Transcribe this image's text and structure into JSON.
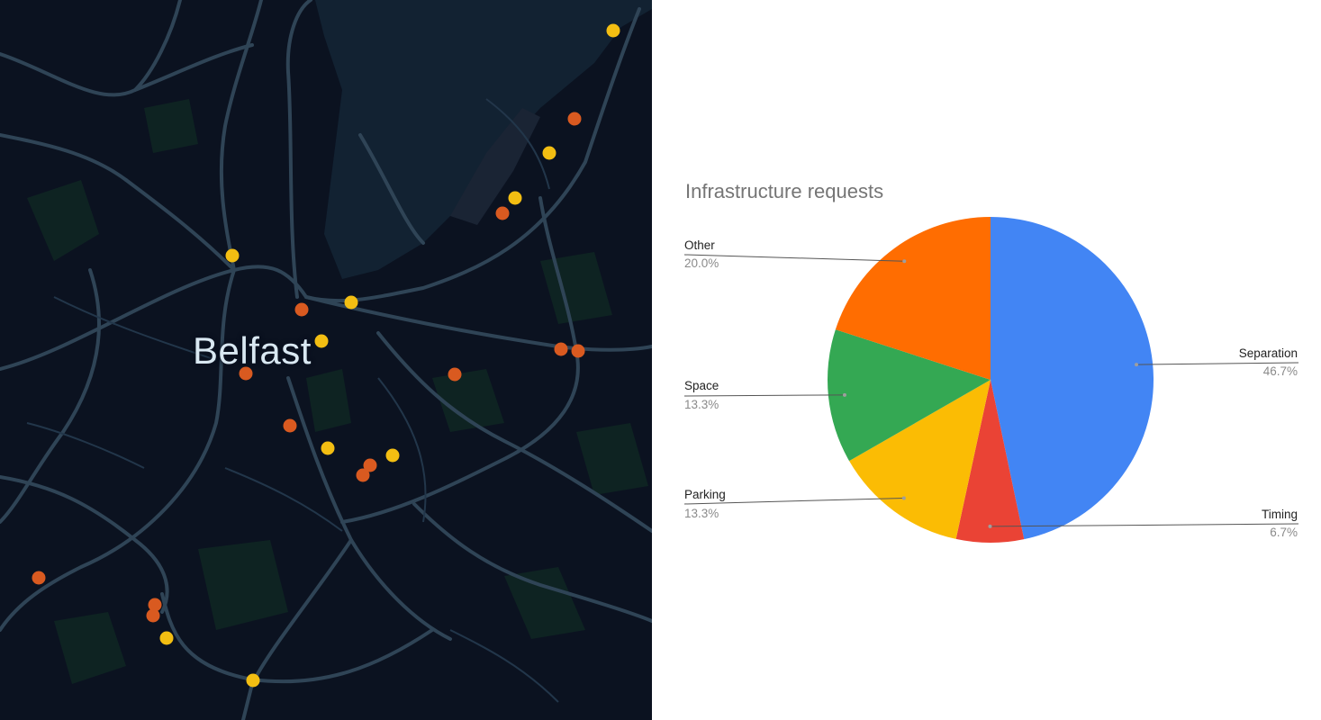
{
  "map": {
    "city_label": "Belfast",
    "colors": {
      "background": "#0b1220",
      "roads": "#2f4456",
      "water": "#122232",
      "parks": "#0e2322",
      "dot_orange": "#d95a20",
      "dot_yellow": "#f3be12"
    }
  },
  "chart_data": {
    "type": "pie",
    "title": "Infrastructure requests",
    "slices": [
      {
        "label": "Separation",
        "value": 46.7,
        "pct_label": "46.7%",
        "color": "#4285f4"
      },
      {
        "label": "Timing",
        "value": 6.7,
        "pct_label": "6.7%",
        "color": "#ea4335"
      },
      {
        "label": "Parking",
        "value": 13.3,
        "pct_label": "13.3%",
        "color": "#fbbc04"
      },
      {
        "label": "Space",
        "value": 13.3,
        "pct_label": "13.3%",
        "color": "#34a853"
      },
      {
        "label": "Other",
        "value": 20.0,
        "pct_label": "20.0%",
        "color": "#ff6d01"
      }
    ],
    "legend": "none",
    "label_position": "outside"
  }
}
